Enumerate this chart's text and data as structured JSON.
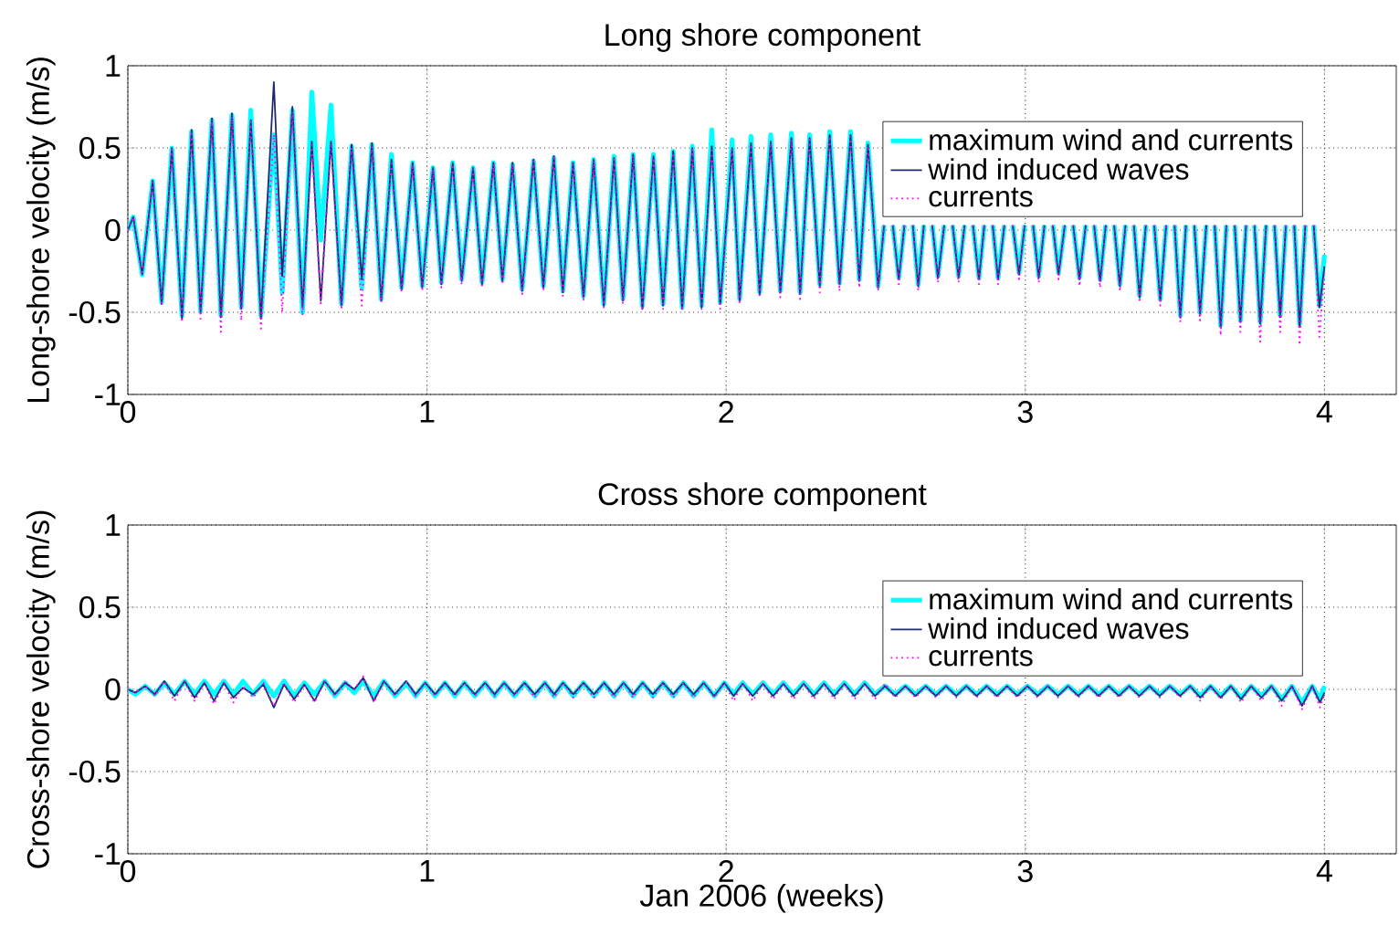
{
  "chart_data": [
    {
      "type": "line",
      "title": "Long shore component",
      "ylabel": "Long-shore velocity (m/s)",
      "xlim": [
        0,
        4.24
      ],
      "ylim": [
        -1,
        1
      ],
      "xticks": [
        0,
        1,
        2,
        3,
        4
      ],
      "yticks": [
        -1,
        -0.5,
        0,
        0.5,
        1
      ],
      "grid": true,
      "legend": "top right",
      "x": [
        0.0,
        0.018,
        0.048,
        0.083,
        0.113,
        0.147,
        0.181,
        0.213,
        0.243,
        0.281,
        0.311,
        0.348,
        0.379,
        0.411,
        0.445,
        0.488,
        0.516,
        0.55,
        0.584,
        0.615,
        0.645,
        0.679,
        0.714,
        0.748,
        0.782,
        0.816,
        0.847,
        0.881,
        0.915,
        0.952,
        0.984,
        1.02,
        1.048,
        1.086,
        1.116,
        1.154,
        1.184,
        1.222,
        1.252,
        1.286,
        1.318,
        1.356,
        1.389,
        1.424,
        1.454,
        1.488,
        1.523,
        1.557,
        1.591,
        1.625,
        1.655,
        1.689,
        1.72,
        1.757,
        1.789,
        1.823,
        1.853,
        1.887,
        1.918,
        1.952,
        1.98,
        2.02,
        2.045,
        2.083,
        2.112,
        2.149,
        2.181,
        2.218,
        2.247,
        2.279,
        2.313,
        2.346,
        2.379,
        2.416,
        2.445,
        2.474,
        2.508,
        2.528,
        2.543,
        2.557,
        2.577,
        2.596,
        2.61,
        2.624,
        2.642,
        2.661,
        2.675,
        2.689,
        2.708,
        2.729,
        2.743,
        2.757,
        2.777,
        2.797,
        2.811,
        2.825,
        2.845,
        2.863,
        2.877,
        2.891,
        2.909,
        2.93,
        2.944,
        2.958,
        2.979,
        2.998,
        3.012,
        3.026,
        3.045,
        3.064,
        3.078,
        3.092,
        3.111,
        3.132,
        3.146,
        3.16,
        3.181,
        3.202,
        3.216,
        3.23,
        3.25,
        3.269,
        3.283,
        3.297,
        3.316,
        3.335,
        3.349,
        3.363,
        3.382,
        3.403,
        3.417,
        3.431,
        3.451,
        3.471,
        3.485,
        3.499,
        3.518,
        3.537,
        3.551,
        3.565,
        3.584,
        3.605,
        3.619,
        3.633,
        3.653,
        3.672,
        3.686,
        3.7,
        3.719,
        3.738,
        3.752,
        3.766,
        3.785,
        3.805,
        3.819,
        3.833,
        3.852,
        3.871,
        3.885,
        3.899,
        3.917,
        3.936,
        3.95,
        3.964,
        3.983,
        4.0
      ],
      "series": [
        {
          "name": "maximum wind and currents",
          "color": "#00ffff",
          "line_style": "solid",
          "values": [
            0.0,
            0.08,
            -0.27,
            0.3,
            -0.44,
            0.5,
            -0.52,
            0.6,
            -0.49,
            0.67,
            -0.52,
            0.7,
            -0.47,
            0.73,
            -0.52,
            0.58,
            -0.38,
            0.73,
            -0.5,
            0.84,
            -0.06,
            0.76,
            -0.45,
            0.51,
            -0.35,
            0.52,
            -0.42,
            0.46,
            -0.35,
            0.41,
            -0.34,
            0.38,
            -0.32,
            0.41,
            -0.3,
            0.38,
            -0.32,
            0.41,
            -0.3,
            0.4,
            -0.36,
            0.42,
            -0.34,
            0.44,
            -0.37,
            0.41,
            -0.4,
            0.43,
            -0.45,
            0.45,
            -0.42,
            0.46,
            -0.46,
            0.46,
            -0.45,
            0.48,
            -0.47,
            0.51,
            -0.46,
            0.61,
            -0.44,
            0.55,
            -0.42,
            0.57,
            -0.38,
            0.58,
            -0.37,
            0.59,
            -0.38,
            0.58,
            -0.33,
            0.6,
            -0.32,
            0.6,
            -0.3,
            0.53,
            -0.34,
            0.03,
            null,
            0.03,
            -0.29,
            0.03,
            null,
            0.03,
            -0.33,
            0.03,
            null,
            0.03,
            -0.28,
            0.03,
            null,
            0.03,
            -0.28,
            0.03,
            null,
            0.03,
            -0.29,
            0.03,
            null,
            0.03,
            -0.29,
            0.03,
            null,
            0.03,
            -0.26,
            0.03,
            null,
            0.03,
            -0.28,
            0.03,
            null,
            0.03,
            -0.26,
            0.03,
            null,
            0.03,
            -0.29,
            0.03,
            null,
            0.03,
            -0.3,
            0.03,
            null,
            0.03,
            -0.33,
            0.03,
            null,
            0.03,
            -0.4,
            0.03,
            null,
            0.03,
            -0.42,
            0.03,
            null,
            0.03,
            -0.52,
            0.03,
            null,
            0.03,
            -0.5,
            0.03,
            null,
            0.03,
            -0.58,
            0.03,
            null,
            0.03,
            -0.55,
            0.03,
            null,
            0.03,
            -0.56,
            0.03,
            null,
            0.03,
            -0.52,
            0.03,
            null,
            0.03,
            -0.57,
            0.03,
            null,
            0.03,
            -0.46,
            -0.15
          ]
        },
        {
          "name": "wind induced waves",
          "color": "#1f2a6e",
          "line_style": "solid",
          "values": [
            0.0,
            0.08,
            -0.27,
            0.3,
            -0.45,
            0.5,
            -0.54,
            0.61,
            -0.5,
            0.68,
            -0.53,
            0.71,
            -0.48,
            0.67,
            -0.54,
            0.9,
            -0.28,
            0.75,
            -0.47,
            0.54,
            -0.43,
            0.54,
            -0.46,
            0.52,
            -0.3,
            0.53,
            -0.43,
            0.43,
            -0.36,
            0.41,
            -0.35,
            0.38,
            -0.33,
            0.41,
            -0.31,
            0.38,
            -0.33,
            0.41,
            -0.31,
            0.41,
            -0.37,
            0.43,
            -0.35,
            0.45,
            -0.38,
            0.41,
            -0.41,
            0.43,
            -0.46,
            0.44,
            -0.43,
            0.46,
            -0.48,
            0.45,
            -0.46,
            0.48,
            -0.48,
            0.5,
            -0.47,
            0.51,
            -0.45,
            0.5,
            -0.43,
            0.53,
            -0.39,
            0.54,
            -0.38,
            0.56,
            -0.39,
            0.56,
            -0.34,
            0.58,
            -0.33,
            0.58,
            -0.31,
            0.52,
            -0.35,
            0.03,
            null,
            0.03,
            -0.3,
            0.03,
            null,
            0.03,
            -0.34,
            0.03,
            null,
            0.03,
            -0.29,
            0.03,
            null,
            0.03,
            -0.29,
            0.03,
            null,
            0.03,
            -0.3,
            0.03,
            null,
            0.03,
            -0.3,
            0.03,
            null,
            0.03,
            -0.27,
            0.03,
            null,
            0.03,
            -0.29,
            0.03,
            null,
            0.03,
            -0.27,
            0.03,
            null,
            0.03,
            -0.3,
            0.03,
            null,
            0.03,
            -0.31,
            0.03,
            null,
            0.03,
            -0.34,
            0.03,
            null,
            0.03,
            -0.41,
            0.03,
            null,
            0.03,
            -0.43,
            0.03,
            null,
            0.03,
            -0.53,
            0.03,
            null,
            0.03,
            -0.51,
            0.03,
            null,
            0.03,
            -0.59,
            0.03,
            null,
            0.03,
            -0.56,
            0.03,
            null,
            0.03,
            -0.57,
            0.03,
            null,
            0.03,
            -0.53,
            0.03,
            null,
            0.03,
            -0.59,
            0.03,
            null,
            0.03,
            -0.47,
            -0.22
          ]
        },
        {
          "name": "currents",
          "color": "#ff00ff",
          "line_style": "dotted",
          "values": [
            0.0,
            0.08,
            -0.27,
            0.29,
            -0.46,
            0.49,
            -0.56,
            0.6,
            -0.54,
            0.66,
            -0.62,
            0.69,
            -0.55,
            0.66,
            -0.6,
            0.58,
            -0.5,
            0.72,
            -0.52,
            0.52,
            -0.46,
            0.53,
            -0.48,
            0.5,
            -0.46,
            0.51,
            -0.44,
            0.42,
            -0.38,
            0.4,
            -0.37,
            0.37,
            -0.35,
            0.4,
            -0.33,
            0.37,
            -0.35,
            0.4,
            -0.33,
            0.4,
            -0.39,
            0.42,
            -0.37,
            0.44,
            -0.4,
            0.4,
            -0.43,
            0.42,
            -0.47,
            0.43,
            -0.45,
            0.45,
            -0.49,
            0.44,
            -0.48,
            0.47,
            -0.49,
            0.49,
            -0.48,
            0.5,
            -0.48,
            0.49,
            -0.45,
            0.52,
            -0.41,
            0.53,
            -0.41,
            0.55,
            -0.42,
            0.55,
            -0.38,
            0.57,
            -0.37,
            0.57,
            -0.35,
            0.51,
            -0.37,
            0.03,
            null,
            0.03,
            -0.33,
            0.03,
            null,
            0.03,
            -0.37,
            0.03,
            null,
            0.03,
            -0.32,
            0.03,
            null,
            0.03,
            -0.32,
            0.03,
            null,
            0.03,
            -0.33,
            0.03,
            null,
            0.03,
            -0.33,
            0.03,
            null,
            0.03,
            -0.3,
            0.03,
            null,
            0.03,
            -0.32,
            0.03,
            null,
            0.03,
            -0.3,
            0.03,
            null,
            0.03,
            -0.34,
            0.03,
            null,
            0.03,
            -0.35,
            0.03,
            null,
            0.03,
            -0.37,
            0.03,
            null,
            0.03,
            -0.44,
            0.03,
            null,
            0.03,
            -0.46,
            0.03,
            null,
            0.03,
            -0.56,
            0.03,
            null,
            0.03,
            -0.55,
            0.03,
            null,
            0.03,
            -0.64,
            0.03,
            null,
            0.03,
            -0.62,
            0.03,
            null,
            0.03,
            -0.68,
            0.03,
            null,
            0.03,
            -0.62,
            0.03,
            null,
            0.03,
            -0.7,
            0.03,
            null,
            0.03,
            -0.65,
            -0.25
          ]
        }
      ]
    },
    {
      "type": "line",
      "title": "Cross shore component",
      "ylabel": "Cross-shore velocity (m/s)",
      "xlabel": "Jan 2006 (weeks)",
      "xlim": [
        0,
        4.24
      ],
      "ylim": [
        -1,
        1
      ],
      "xticks": [
        0,
        1,
        2,
        3,
        4
      ],
      "yticks": [
        -1,
        -0.5,
        0,
        0.5,
        1
      ],
      "grid": true,
      "legend": "top right",
      "x": [
        0.0,
        0.025,
        0.058,
        0.09,
        0.122,
        0.156,
        0.19,
        0.223,
        0.256,
        0.288,
        0.321,
        0.353,
        0.385,
        0.419,
        0.453,
        0.488,
        0.522,
        0.556,
        0.59,
        0.624,
        0.658,
        0.692,
        0.726,
        0.757,
        0.787,
        0.822,
        0.856,
        0.893,
        0.93,
        0.962,
        0.994,
        1.027,
        1.06,
        1.093,
        1.125,
        1.16,
        1.194,
        1.226,
        1.258,
        1.292,
        1.326,
        1.36,
        1.394,
        1.425,
        1.455,
        1.489,
        1.523,
        1.558,
        1.592,
        1.625,
        1.657,
        1.689,
        1.721,
        1.755,
        1.789,
        1.823,
        1.857,
        1.891,
        1.925,
        1.96,
        1.994,
        2.025,
        2.055,
        2.089,
        2.123,
        2.157,
        2.191,
        2.225,
        2.259,
        2.293,
        2.327,
        2.361,
        2.395,
        2.429,
        2.463,
        2.497,
        2.531,
        2.565,
        2.599,
        2.633,
        2.667,
        2.701,
        2.735,
        2.769,
        2.803,
        2.837,
        2.871,
        2.905,
        2.939,
        2.973,
        3.007,
        3.041,
        3.075,
        3.109,
        3.143,
        3.177,
        3.211,
        3.245,
        3.279,
        3.313,
        3.347,
        3.381,
        3.415,
        3.449,
        3.483,
        3.517,
        3.551,
        3.585,
        3.619,
        3.653,
        3.687,
        3.721,
        3.755,
        3.789,
        3.823,
        3.857,
        3.891,
        3.925,
        3.959,
        3.985,
        4.0
      ],
      "series": [
        {
          "name": "maximum wind and currents",
          "color": "#00ffff",
          "line_style": "solid",
          "values": [
            0.0,
            -0.03,
            0.02,
            -0.03,
            0.04,
            -0.03,
            0.05,
            -0.03,
            0.05,
            -0.03,
            0.05,
            -0.03,
            0.05,
            -0.03,
            0.05,
            -0.04,
            0.05,
            -0.04,
            0.04,
            -0.03,
            0.05,
            -0.04,
            0.04,
            -0.02,
            0.05,
            -0.04,
            0.05,
            -0.04,
            0.04,
            -0.04,
            0.04,
            -0.04,
            0.04,
            -0.04,
            0.04,
            -0.04,
            0.04,
            -0.04,
            0.04,
            -0.04,
            0.04,
            -0.04,
            0.04,
            -0.04,
            0.04,
            -0.04,
            0.04,
            -0.04,
            0.04,
            -0.04,
            0.04,
            -0.04,
            0.04,
            -0.04,
            0.04,
            -0.04,
            0.04,
            -0.04,
            0.04,
            -0.04,
            0.04,
            -0.03,
            0.04,
            -0.03,
            0.04,
            -0.03,
            0.04,
            -0.03,
            0.04,
            -0.03,
            0.04,
            -0.03,
            0.04,
            -0.03,
            0.04,
            -0.03,
            0.02,
            -0.03,
            0.02,
            -0.03,
            0.02,
            -0.03,
            0.02,
            -0.03,
            0.02,
            -0.03,
            0.02,
            -0.03,
            0.02,
            -0.03,
            0.02,
            -0.03,
            0.02,
            -0.03,
            0.02,
            -0.03,
            0.02,
            -0.03,
            0.02,
            -0.03,
            0.02,
            -0.03,
            0.02,
            -0.03,
            0.02,
            -0.03,
            0.02,
            -0.04,
            0.02,
            -0.04,
            0.02,
            -0.05,
            0.02,
            -0.04,
            0.02,
            -0.06,
            0.02,
            -0.08,
            0.02,
            -0.06,
            0.02
          ]
        },
        {
          "name": "wind induced waves",
          "color": "#1f2a6e",
          "line_style": "solid",
          "values": [
            0.0,
            -0.02,
            0.02,
            -0.03,
            0.05,
            -0.04,
            0.05,
            -0.05,
            0.04,
            -0.07,
            0.04,
            -0.05,
            0.01,
            -0.03,
            0.03,
            -0.11,
            0.03,
            -0.06,
            0.03,
            -0.07,
            0.05,
            -0.03,
            0.04,
            0.0,
            0.07,
            -0.07,
            0.05,
            -0.03,
            0.05,
            -0.03,
            0.04,
            -0.03,
            0.04,
            -0.03,
            0.04,
            -0.03,
            0.04,
            -0.03,
            0.04,
            -0.03,
            0.04,
            -0.03,
            0.04,
            -0.03,
            0.04,
            -0.03,
            0.04,
            -0.03,
            0.04,
            -0.03,
            0.04,
            -0.03,
            0.04,
            -0.03,
            0.04,
            -0.03,
            0.04,
            -0.03,
            0.04,
            -0.04,
            0.04,
            -0.04,
            0.035,
            -0.04,
            0.035,
            -0.04,
            0.035,
            -0.04,
            0.035,
            -0.04,
            0.035,
            -0.04,
            0.035,
            -0.04,
            0.035,
            -0.04,
            0.02,
            -0.04,
            0.02,
            -0.04,
            0.02,
            -0.04,
            0.02,
            -0.04,
            0.02,
            -0.04,
            0.02,
            -0.04,
            0.02,
            -0.04,
            0.02,
            -0.04,
            0.02,
            -0.04,
            0.02,
            -0.04,
            0.02,
            -0.04,
            0.02,
            -0.04,
            0.02,
            -0.04,
            0.02,
            -0.04,
            0.02,
            -0.04,
            0.02,
            -0.05,
            0.02,
            -0.05,
            0.02,
            -0.06,
            0.02,
            -0.05,
            0.02,
            -0.07,
            0.02,
            -0.1,
            0.02,
            -0.08,
            -0.02
          ]
        },
        {
          "name": "currents",
          "color": "#ff00ff",
          "line_style": "dotted",
          "values": [
            0.0,
            -0.02,
            0.02,
            -0.04,
            0.05,
            -0.07,
            0.05,
            -0.07,
            0.04,
            -0.09,
            0.04,
            -0.08,
            0.02,
            -0.05,
            0.04,
            -0.1,
            0.04,
            -0.08,
            0.03,
            -0.08,
            0.05,
            -0.04,
            0.05,
            0.0,
            0.08,
            -0.08,
            0.05,
            -0.04,
            0.05,
            -0.04,
            0.04,
            -0.04,
            0.04,
            -0.04,
            0.04,
            -0.04,
            0.04,
            -0.04,
            0.04,
            -0.04,
            0.04,
            -0.05,
            0.04,
            -0.05,
            0.04,
            -0.05,
            0.04,
            -0.05,
            0.04,
            -0.05,
            0.04,
            -0.05,
            0.04,
            -0.05,
            0.04,
            -0.05,
            0.04,
            -0.05,
            0.04,
            -0.05,
            0.04,
            -0.07,
            0.04,
            -0.07,
            0.035,
            -0.06,
            0.035,
            -0.06,
            0.035,
            -0.06,
            0.035,
            -0.06,
            0.035,
            -0.06,
            0.035,
            -0.06,
            0.035,
            -0.05,
            0.02,
            -0.05,
            0.02,
            -0.05,
            0.02,
            -0.05,
            0.02,
            -0.05,
            0.02,
            -0.05,
            0.02,
            -0.05,
            0.02,
            -0.05,
            0.02,
            -0.05,
            0.02,
            -0.05,
            0.02,
            -0.05,
            0.02,
            -0.05,
            0.02,
            -0.05,
            0.02,
            -0.05,
            0.02,
            -0.05,
            0.02,
            -0.07,
            0.02,
            -0.06,
            0.02,
            -0.08,
            0.02,
            -0.07,
            0.02,
            -0.1,
            0.02,
            -0.12,
            0.02,
            -0.11,
            -0.03
          ]
        }
      ]
    }
  ]
}
